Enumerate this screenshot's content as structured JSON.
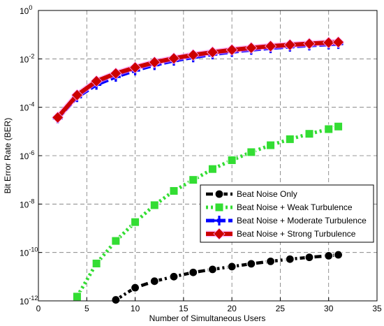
{
  "chart_data": {
    "type": "line",
    "xlabel": "Number of Simultaneous Users",
    "ylabel": "Bit Error Rate (BER)",
    "xlim": [
      0,
      35
    ],
    "ylim_log10": [
      -12,
      0
    ],
    "y_scale": "log",
    "grid": true,
    "legend_position": "lower-right",
    "x_ticks": [
      "0",
      "5",
      "10",
      "15",
      "20",
      "25",
      "30",
      "35"
    ],
    "y_ticks": [
      {
        "base": "10",
        "exp": "-12"
      },
      {
        "base": "10",
        "exp": "-10"
      },
      {
        "base": "10",
        "exp": "-8"
      },
      {
        "base": "10",
        "exp": "-6"
      },
      {
        "base": "10",
        "exp": "-4"
      },
      {
        "base": "10",
        "exp": "-2"
      },
      {
        "base": "10",
        "exp": "0"
      }
    ],
    "series": [
      {
        "name": "Beat Noise Only",
        "color": "#000000",
        "line_style": "dash-dot",
        "marker": "circle",
        "x": [
          8,
          10,
          12,
          14,
          16,
          18,
          20,
          22,
          24,
          26,
          28,
          30,
          31
        ],
        "y": [
          1.1e-12,
          3.5e-12,
          6.5e-12,
          1e-11,
          1.5e-11,
          2e-11,
          2.6e-11,
          3.4e-11,
          4.3e-11,
          5.3e-11,
          6.3e-11,
          7.3e-11,
          8e-11
        ]
      },
      {
        "name": "Beat Noise + Weak Turbulence",
        "color": "#33dd33",
        "line_style": "dotted",
        "marker": "square",
        "x": [
          4,
          6,
          8,
          10,
          12,
          14,
          16,
          18,
          20,
          22,
          24,
          26,
          28,
          30,
          31
        ],
        "y": [
          1.5e-12,
          3.5e-11,
          3e-10,
          1.8e-09,
          9e-09,
          3.5e-08,
          1e-07,
          2.8e-07,
          6.5e-07,
          1.4e-06,
          2.7e-06,
          4.8e-06,
          8e-06,
          1.25e-05,
          1.6e-05
        ]
      },
      {
        "name": "Beat Noise + Moderate Turbulence",
        "color": "#0000ff",
        "line_style": "dashed",
        "marker": "plus",
        "x": [
          2,
          4,
          6,
          8,
          10,
          12,
          14,
          16,
          18,
          20,
          22,
          24,
          26,
          28,
          30,
          31
        ],
        "y": [
          3.5e-05,
          0.00026,
          0.00085,
          0.0018,
          0.0033,
          0.0055,
          0.0083,
          0.0115,
          0.0152,
          0.0192,
          0.0235,
          0.0275,
          0.0315,
          0.0355,
          0.039,
          0.041
        ]
      },
      {
        "name": "Beat Noise + Strong Turbulence",
        "color": "#cc0000",
        "line_style": "solid",
        "marker": "diamond",
        "x": [
          2,
          4,
          6,
          8,
          10,
          12,
          14,
          16,
          18,
          20,
          22,
          24,
          26,
          28,
          30,
          31
        ],
        "y": [
          3.8e-05,
          0.00032,
          0.0012,
          0.0025,
          0.0044,
          0.0072,
          0.0105,
          0.0145,
          0.0188,
          0.0235,
          0.0285,
          0.0335,
          0.038,
          0.0425,
          0.047,
          0.049
        ]
      }
    ]
  }
}
